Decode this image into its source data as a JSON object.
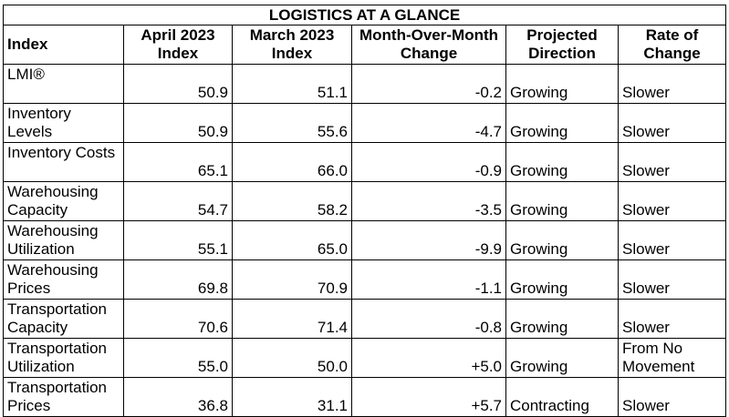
{
  "title": "LOGISTICS AT A GLANCE",
  "headers": [
    "Index",
    "April 2023 Index",
    "March 2023 Index",
    "Month-Over-Month Change",
    "Projected Direction",
    "Rate of Change"
  ],
  "rows": [
    [
      "LMI®",
      "50.9",
      "51.1",
      "-0.2",
      "Growing",
      "Slower"
    ],
    [
      "Inventory Levels",
      "50.9",
      "55.6",
      "-4.7",
      "Growing",
      "Slower"
    ],
    [
      "Inventory Costs",
      "65.1",
      "66.0",
      "-0.9",
      "Growing",
      "Slower"
    ],
    [
      "Warehousing Capacity",
      "54.7",
      "58.2",
      "-3.5",
      "Growing",
      "Slower"
    ],
    [
      "Warehousing Utilization",
      "55.1",
      "65.0",
      "-9.9",
      "Growing",
      "Slower"
    ],
    [
      "Warehousing Prices",
      "69.8",
      "70.9",
      "-1.1",
      "Growing",
      "Slower"
    ],
    [
      "Transportation Capacity",
      "70.6",
      "71.4",
      "-0.8",
      "Growing",
      "Slower"
    ],
    [
      "Transportation Utilization",
      "55.0",
      "50.0",
      "+5.0",
      "Growing",
      "From No Movement"
    ],
    [
      "Transportation Prices",
      "36.8",
      "31.1",
      "+5.7",
      "Contracting",
      "Slower"
    ]
  ]
}
